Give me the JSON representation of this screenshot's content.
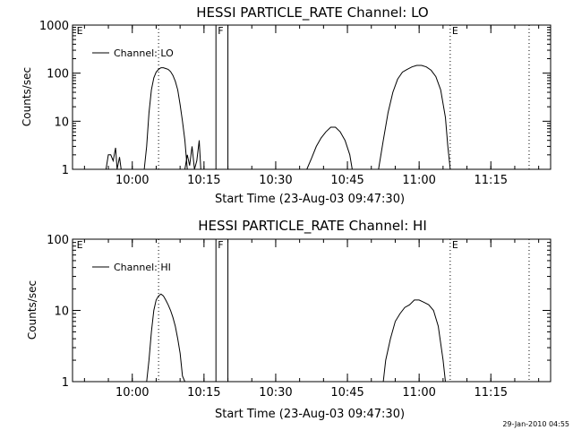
{
  "chart_data": [
    {
      "type": "line",
      "title": "HESSI PARTICLE_RATE Channel: LO",
      "xlabel": "Start Time (23-Aug-03 09:47:30)",
      "ylabel": "Counts/sec",
      "y_scale": "log",
      "ylim": [
        1,
        1000
      ],
      "y_ticks": [
        {
          "value": 1,
          "label": "1"
        },
        {
          "value": 10,
          "label": "10"
        },
        {
          "value": 100,
          "label": "100"
        },
        {
          "value": 1000,
          "label": "1000"
        }
      ],
      "xlim": [
        "09:47:30",
        "11:27:30"
      ],
      "x_ticks": [
        {
          "value": "10:00",
          "label": "10:00"
        },
        {
          "value": "10:15",
          "label": "10:15"
        },
        {
          "value": "10:30",
          "label": "10:30"
        },
        {
          "value": "10:45",
          "label": "10:45"
        },
        {
          "value": "11:00",
          "label": "11:00"
        },
        {
          "value": "11:15",
          "label": "11:15"
        }
      ],
      "legend": {
        "position": "top-left",
        "entries": [
          "Channel: LO"
        ]
      },
      "markers": [
        {
          "time": "09:48:00",
          "label": "E",
          "style": "none"
        },
        {
          "time": "10:05:30",
          "label": "",
          "style": "dotted"
        },
        {
          "time": "10:17:30",
          "label": "F",
          "style": "solid"
        },
        {
          "time": "10:20:00",
          "label": "",
          "style": "solid"
        },
        {
          "time": "11:06:30",
          "label": "E",
          "style": "dotted"
        },
        {
          "time": "11:23:00",
          "label": "",
          "style": "dotted"
        }
      ],
      "series": [
        {
          "name": "Channel: LO",
          "segments": [
            [
              [
                "09:54:30",
                1
              ],
              [
                "09:55:00",
                2
              ],
              [
                "09:55:30",
                2
              ],
              [
                "09:56:00",
                1.5
              ],
              [
                "09:56:30",
                2.8
              ],
              [
                "09:56:50",
                1
              ],
              [
                "09:57:20",
                1.8
              ],
              [
                "09:57:40",
                1
              ]
            ],
            [
              [
                "10:02:30",
                1
              ],
              [
                "10:03:00",
                3
              ],
              [
                "10:03:30",
                15
              ],
              [
                "10:04:00",
                45
              ],
              [
                "10:04:30",
                80
              ],
              [
                "10:05:00",
                105
              ],
              [
                "10:05:30",
                120
              ],
              [
                "10:06:00",
                130
              ],
              [
                "10:06:30",
                130
              ],
              [
                "10:07:00",
                125
              ],
              [
                "10:07:30",
                120
              ],
              [
                "10:08:00",
                108
              ],
              [
                "10:08:30",
                90
              ],
              [
                "10:09:00",
                68
              ],
              [
                "10:09:30",
                45
              ],
              [
                "10:10:00",
                22
              ],
              [
                "10:10:30",
                10
              ],
              [
                "10:11:00",
                4
              ],
              [
                "10:11:30",
                1
              ]
            ],
            [
              [
                "10:11:00",
                1
              ],
              [
                "10:11:30",
                2
              ],
              [
                "10:12:00",
                1.2
              ],
              [
                "10:12:30",
                3
              ],
              [
                "10:13:00",
                1
              ],
              [
                "10:13:30",
                1.5
              ],
              [
                "10:14:00",
                4
              ],
              [
                "10:14:20",
                1
              ]
            ],
            [
              [
                "10:36:30",
                1
              ],
              [
                "10:37:30",
                1.7
              ],
              [
                "10:38:30",
                3
              ],
              [
                "10:39:30",
                4.5
              ],
              [
                "10:40:30",
                6
              ],
              [
                "10:41:30",
                7.5
              ],
              [
                "10:42:30",
                7.5
              ],
              [
                "10:43:30",
                6
              ],
              [
                "10:44:30",
                4
              ],
              [
                "10:45:30",
                2
              ],
              [
                "10:46:00",
                1
              ]
            ],
            [
              [
                "10:51:30",
                1
              ],
              [
                "10:52:30",
                4
              ],
              [
                "10:53:30",
                15
              ],
              [
                "10:54:30",
                40
              ],
              [
                "10:55:30",
                75
              ],
              [
                "10:56:30",
                105
              ],
              [
                "10:57:30",
                120
              ],
              [
                "10:58:30",
                135
              ],
              [
                "10:59:30",
                145
              ],
              [
                "11:00:30",
                145
              ],
              [
                "11:01:30",
                135
              ],
              [
                "11:02:30",
                115
              ],
              [
                "11:03:30",
                85
              ],
              [
                "11:04:30",
                45
              ],
              [
                "11:05:30",
                12
              ],
              [
                "11:06:00",
                3
              ],
              [
                "11:06:30",
                1
              ]
            ]
          ]
        }
      ]
    },
    {
      "type": "line",
      "title": "HESSI PARTICLE_RATE Channel: HI",
      "xlabel": "Start Time (23-Aug-03 09:47:30)",
      "ylabel": "Counts/sec",
      "y_scale": "log",
      "ylim": [
        1,
        100
      ],
      "y_ticks": [
        {
          "value": 1,
          "label": "1"
        },
        {
          "value": 10,
          "label": "10"
        },
        {
          "value": 100,
          "label": "100"
        }
      ],
      "xlim": [
        "09:47:30",
        "11:27:30"
      ],
      "x_ticks": [
        {
          "value": "10:00",
          "label": "10:00"
        },
        {
          "value": "10:15",
          "label": "10:15"
        },
        {
          "value": "10:30",
          "label": "10:30"
        },
        {
          "value": "10:45",
          "label": "10:45"
        },
        {
          "value": "11:00",
          "label": "11:00"
        },
        {
          "value": "11:15",
          "label": "11:15"
        }
      ],
      "legend": {
        "position": "top-left",
        "entries": [
          "Channel: HI"
        ]
      },
      "markers": [
        {
          "time": "09:48:00",
          "label": "E",
          "style": "none"
        },
        {
          "time": "10:05:30",
          "label": "",
          "style": "dotted"
        },
        {
          "time": "10:17:30",
          "label": "F",
          "style": "solid"
        },
        {
          "time": "10:20:00",
          "label": "",
          "style": "solid"
        },
        {
          "time": "11:06:30",
          "label": "E",
          "style": "dotted"
        },
        {
          "time": "11:23:00",
          "label": "",
          "style": "dotted"
        }
      ],
      "series": [
        {
          "name": "Channel: HI",
          "segments": [
            [
              [
                "10:03:00",
                1
              ],
              [
                "10:03:30",
                2
              ],
              [
                "10:04:00",
                5
              ],
              [
                "10:04:30",
                10
              ],
              [
                "10:05:00",
                14
              ],
              [
                "10:05:30",
                16
              ],
              [
                "10:06:00",
                17
              ],
              [
                "10:06:30",
                16
              ],
              [
                "10:07:00",
                14
              ],
              [
                "10:07:30",
                12
              ],
              [
                "10:08:00",
                10
              ],
              [
                "10:08:30",
                8
              ],
              [
                "10:09:00",
                6
              ],
              [
                "10:09:30",
                4
              ],
              [
                "10:10:00",
                2.5
              ],
              [
                "10:10:30",
                1.2
              ],
              [
                "10:11:00",
                1
              ]
            ],
            [
              [
                "10:52:30",
                1
              ],
              [
                "10:53:00",
                2
              ],
              [
                "10:54:00",
                4
              ],
              [
                "10:55:00",
                7
              ],
              [
                "10:56:00",
                9
              ],
              [
                "10:57:00",
                11
              ],
              [
                "10:58:00",
                12
              ],
              [
                "10:59:00",
                14
              ],
              [
                "11:00:00",
                14
              ],
              [
                "11:01:00",
                13
              ],
              [
                "11:02:00",
                12
              ],
              [
                "11:03:00",
                10
              ],
              [
                "11:04:00",
                6
              ],
              [
                "11:05:00",
                2
              ],
              [
                "11:05:30",
                1
              ]
            ]
          ]
        }
      ]
    }
  ],
  "footer": {
    "timestamp": "29-Jan-2010 04:55"
  }
}
